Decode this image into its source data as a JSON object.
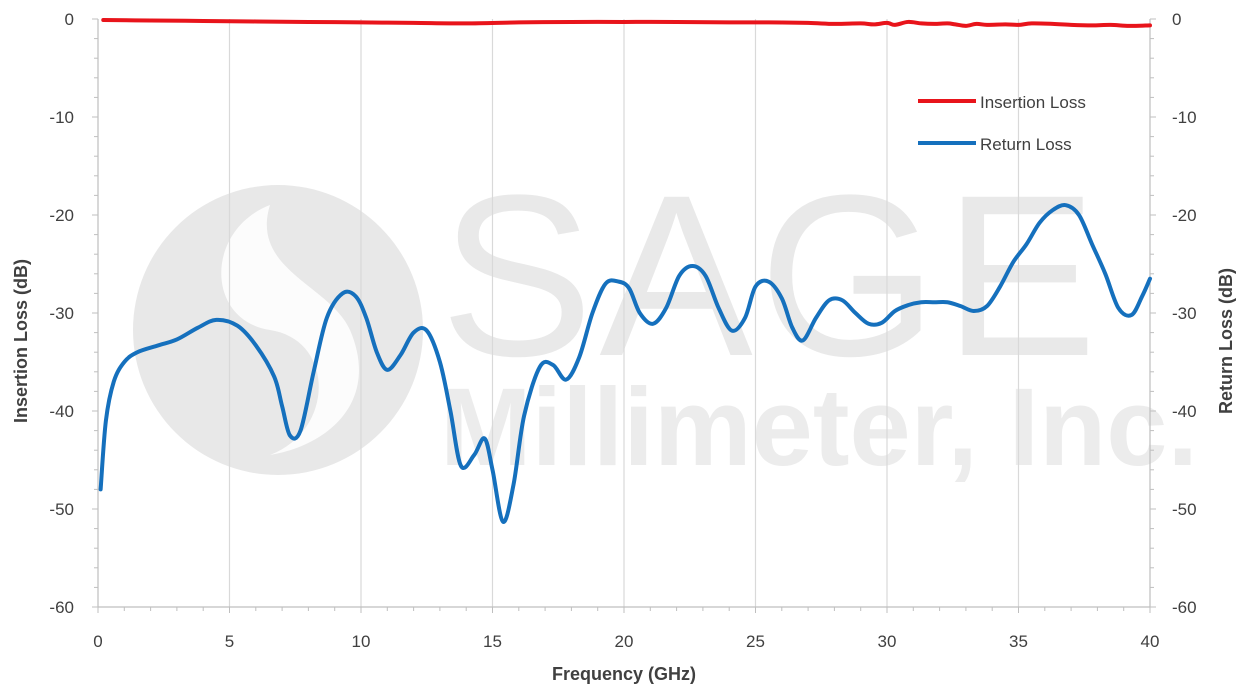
{
  "chart_data": {
    "type": "line",
    "title": "",
    "xlabel": "Frequency (GHz)",
    "ylabel_left": "Insertion Loss (dB)",
    "ylabel_right": "Return Loss (dB)",
    "xlim": [
      0,
      40
    ],
    "ylim": [
      -60,
      0
    ],
    "x_ticks": [
      0,
      5,
      10,
      15,
      20,
      25,
      30,
      35,
      40
    ],
    "y_ticks": [
      0,
      -10,
      -20,
      -30,
      -40,
      -50,
      -60
    ],
    "x_tick_labels": [
      "0",
      "5",
      "10",
      "15",
      "20",
      "25",
      "30",
      "35",
      "40"
    ],
    "y_tick_labels": [
      "0",
      "-10",
      "-20",
      "-30",
      "-40",
      "-50",
      "-60"
    ],
    "grid": "vertical",
    "legend_position": "top-right",
    "watermark": {
      "line1": "SAGE",
      "line2": "Millimeter, Inc."
    },
    "colors": {
      "insertion": "#e8141b",
      "return": "#1570bd",
      "grid": "#d9d9d9",
      "axis": "#bfbfbf"
    },
    "series": [
      {
        "name": "Insertion Loss",
        "axis": "left",
        "points": [
          [
            0.2,
            -0.1
          ],
          [
            2,
            -0.15
          ],
          [
            4,
            -0.2
          ],
          [
            6,
            -0.25
          ],
          [
            8,
            -0.3
          ],
          [
            10,
            -0.35
          ],
          [
            12,
            -0.4
          ],
          [
            14,
            -0.45
          ],
          [
            16,
            -0.35
          ],
          [
            18,
            -0.3
          ],
          [
            20,
            -0.3
          ],
          [
            22,
            -0.3
          ],
          [
            24,
            -0.35
          ],
          [
            25.5,
            -0.35
          ],
          [
            27,
            -0.4
          ],
          [
            28,
            -0.5
          ],
          [
            29,
            -0.45
          ],
          [
            29.5,
            -0.55
          ],
          [
            30,
            -0.4
          ],
          [
            30.3,
            -0.6
          ],
          [
            30.8,
            -0.3
          ],
          [
            31.3,
            -0.45
          ],
          [
            31.8,
            -0.5
          ],
          [
            32.3,
            -0.45
          ],
          [
            32.6,
            -0.55
          ],
          [
            33,
            -0.7
          ],
          [
            33.4,
            -0.5
          ],
          [
            33.8,
            -0.6
          ],
          [
            34.5,
            -0.55
          ],
          [
            35,
            -0.6
          ],
          [
            35.5,
            -0.45
          ],
          [
            36.3,
            -0.5
          ],
          [
            37,
            -0.6
          ],
          [
            37.8,
            -0.65
          ],
          [
            38.5,
            -0.6
          ],
          [
            39.2,
            -0.7
          ],
          [
            40,
            -0.65
          ]
        ]
      },
      {
        "name": "Return Loss",
        "axis": "right",
        "points": [
          [
            0.1,
            -48
          ],
          [
            0.3,
            -41
          ],
          [
            0.6,
            -37
          ],
          [
            1.0,
            -35
          ],
          [
            1.5,
            -34
          ],
          [
            2.3,
            -33.3
          ],
          [
            3.0,
            -32.7
          ],
          [
            3.8,
            -31.5
          ],
          [
            4.5,
            -30.7
          ],
          [
            5.3,
            -31.3
          ],
          [
            6.0,
            -33.3
          ],
          [
            6.7,
            -36.5
          ],
          [
            7.0,
            -39.5
          ],
          [
            7.3,
            -42.5
          ],
          [
            7.7,
            -42
          ],
          [
            8.2,
            -36
          ],
          [
            8.7,
            -30.5
          ],
          [
            9.3,
            -28
          ],
          [
            9.8,
            -28.3
          ],
          [
            10.2,
            -30.5
          ],
          [
            10.6,
            -34
          ],
          [
            11.0,
            -35.8
          ],
          [
            11.5,
            -34.3
          ],
          [
            12.0,
            -32
          ],
          [
            12.5,
            -31.8
          ],
          [
            13.0,
            -35
          ],
          [
            13.4,
            -40
          ],
          [
            13.8,
            -45.6
          ],
          [
            14.3,
            -44.5
          ],
          [
            14.7,
            -42.8
          ],
          [
            15.0,
            -46
          ],
          [
            15.4,
            -51.3
          ],
          [
            15.8,
            -47.5
          ],
          [
            16.2,
            -40.5
          ],
          [
            16.8,
            -35.5
          ],
          [
            17.3,
            -35.3
          ],
          [
            17.8,
            -36.8
          ],
          [
            18.3,
            -34.5
          ],
          [
            18.8,
            -30
          ],
          [
            19.3,
            -27
          ],
          [
            19.8,
            -26.8
          ],
          [
            20.2,
            -27.5
          ],
          [
            20.6,
            -30
          ],
          [
            21.1,
            -31.1
          ],
          [
            21.6,
            -29.5
          ],
          [
            22.1,
            -26.2
          ],
          [
            22.6,
            -25.2
          ],
          [
            23.1,
            -26.2
          ],
          [
            23.6,
            -29.5
          ],
          [
            24.1,
            -31.8
          ],
          [
            24.6,
            -30.5
          ],
          [
            25.0,
            -27.3
          ],
          [
            25.5,
            -26.8
          ],
          [
            26.0,
            -28.5
          ],
          [
            26.4,
            -31.5
          ],
          [
            26.8,
            -32.8
          ],
          [
            27.3,
            -30.5
          ],
          [
            27.8,
            -28.7
          ],
          [
            28.3,
            -28.7
          ],
          [
            28.8,
            -30
          ],
          [
            29.3,
            -31.1
          ],
          [
            29.8,
            -31
          ],
          [
            30.3,
            -29.8
          ],
          [
            30.8,
            -29.2
          ],
          [
            31.3,
            -28.9
          ],
          [
            31.8,
            -28.9
          ],
          [
            32.3,
            -28.9
          ],
          [
            32.8,
            -29.3
          ],
          [
            33.3,
            -29.8
          ],
          [
            33.8,
            -29.3
          ],
          [
            34.3,
            -27.3
          ],
          [
            34.8,
            -24.8
          ],
          [
            35.3,
            -23
          ],
          [
            35.8,
            -20.8
          ],
          [
            36.3,
            -19.5
          ],
          [
            36.8,
            -19
          ],
          [
            37.3,
            -20
          ],
          [
            37.8,
            -23
          ],
          [
            38.3,
            -26
          ],
          [
            38.8,
            -29.5
          ],
          [
            39.3,
            -30.2
          ],
          [
            39.7,
            -28.3
          ],
          [
            40.0,
            -26.5
          ]
        ]
      }
    ]
  }
}
